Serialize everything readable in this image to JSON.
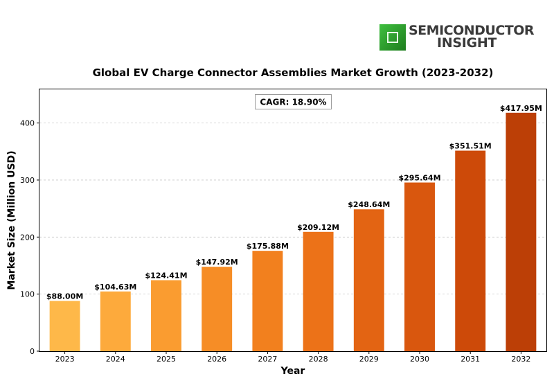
{
  "logo": {
    "line1": "SEMICONDUCTOR",
    "line2": "INSIGHT"
  },
  "chart_data": {
    "type": "bar",
    "title": "Global EV Charge Connector Assemblies Market Growth (2023-2032)",
    "xlabel": "Year",
    "ylabel": "Market Size (Million USD)",
    "categories": [
      "2023",
      "2024",
      "2025",
      "2026",
      "2027",
      "2028",
      "2029",
      "2030",
      "2031",
      "2032"
    ],
    "values": [
      88.0,
      104.63,
      124.41,
      147.92,
      175.88,
      209.12,
      248.64,
      295.64,
      351.51,
      417.95
    ],
    "data_labels": [
      "$88.00M",
      "$104.63M",
      "$124.41M",
      "$147.92M",
      "$175.88M",
      "$209.12M",
      "$248.64M",
      "$295.64M",
      "$351.51M",
      "$417.95M"
    ],
    "bar_colors": [
      "#feb849",
      "#fdaa3c",
      "#fa9c30",
      "#f68d26",
      "#f2801e",
      "#ec7218",
      "#e36413",
      "#d9570e",
      "#cd4a09",
      "#bc3f06"
    ],
    "yticks": [
      0,
      100,
      200,
      300,
      400
    ],
    "ylim": [
      0,
      459
    ],
    "grid": true,
    "annotation": "CAGR: 18.90%"
  }
}
